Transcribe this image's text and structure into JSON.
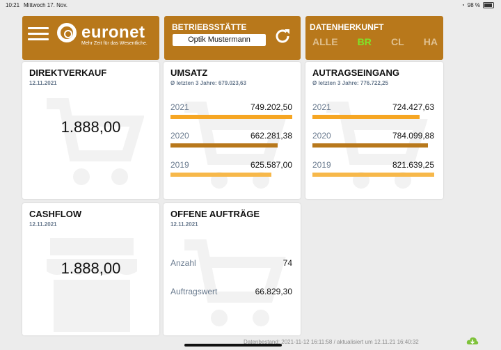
{
  "status": {
    "time": "10:21",
    "date": "Mittwoch 17. Nov.",
    "battery": "98 %"
  },
  "header": {
    "logo_text": "euronet",
    "logo_slogan": "Mehr Zeit für das Wesentliche.",
    "site_title": "BETRIEBSSTÄTTE",
    "site_value": "Optik Mustermann",
    "source_title": "DATENHERKUNFT",
    "source_options": [
      "ALLE",
      "BR",
      "CL",
      "HA"
    ],
    "source_active": "BR"
  },
  "colors": {
    "brand": "#b8781b",
    "active": "#7ee629",
    "bar_orange": "#f6a623",
    "bar_brown": "#b8781b",
    "bar_light": "#f7b84a"
  },
  "cards": {
    "direktverkauf": {
      "title": "DIREKTVERKAUF",
      "date": "12.11.2021",
      "value": "1.888,00",
      "info_icon": "i"
    },
    "umsatz": {
      "title": "UMSATZ",
      "subtitle": "Ø letzten 3 Jahre: 679.023,63",
      "rows": [
        {
          "year": "2021",
          "value": "749.202,50",
          "fill": 1.0
        },
        {
          "year": "2020",
          "value": "662.281,38",
          "fill": 0.88
        },
        {
          "year": "2019",
          "value": "625.587,00",
          "fill": 0.83
        }
      ]
    },
    "auftragseingang": {
      "title": "AUTRAGSEINGANG",
      "subtitle": "Ø letzten 3 Jahre: 776.722,25",
      "rows": [
        {
          "year": "2021",
          "value": "724.427,63",
          "fill": 0.88
        },
        {
          "year": "2020",
          "value": "784.099,88",
          "fill": 0.95
        },
        {
          "year": "2019",
          "value": "821.639,25",
          "fill": 1.0
        }
      ]
    },
    "cashflow": {
      "title": "CASHFLOW",
      "date": "12.11.2021",
      "value": "1.888,00"
    },
    "offene_auftraege": {
      "title": "OFFENE AUFTRÄGE",
      "date": "12.11.2021",
      "count_label": "Anzahl",
      "count_value": "74",
      "worth_label": "Auftragswert",
      "worth_value": "66.829,30"
    }
  },
  "footer": {
    "text": "Datenbestand: 2021-11-12 16:11:58 / aktualisiert um 12.11.21 16:40:32"
  }
}
